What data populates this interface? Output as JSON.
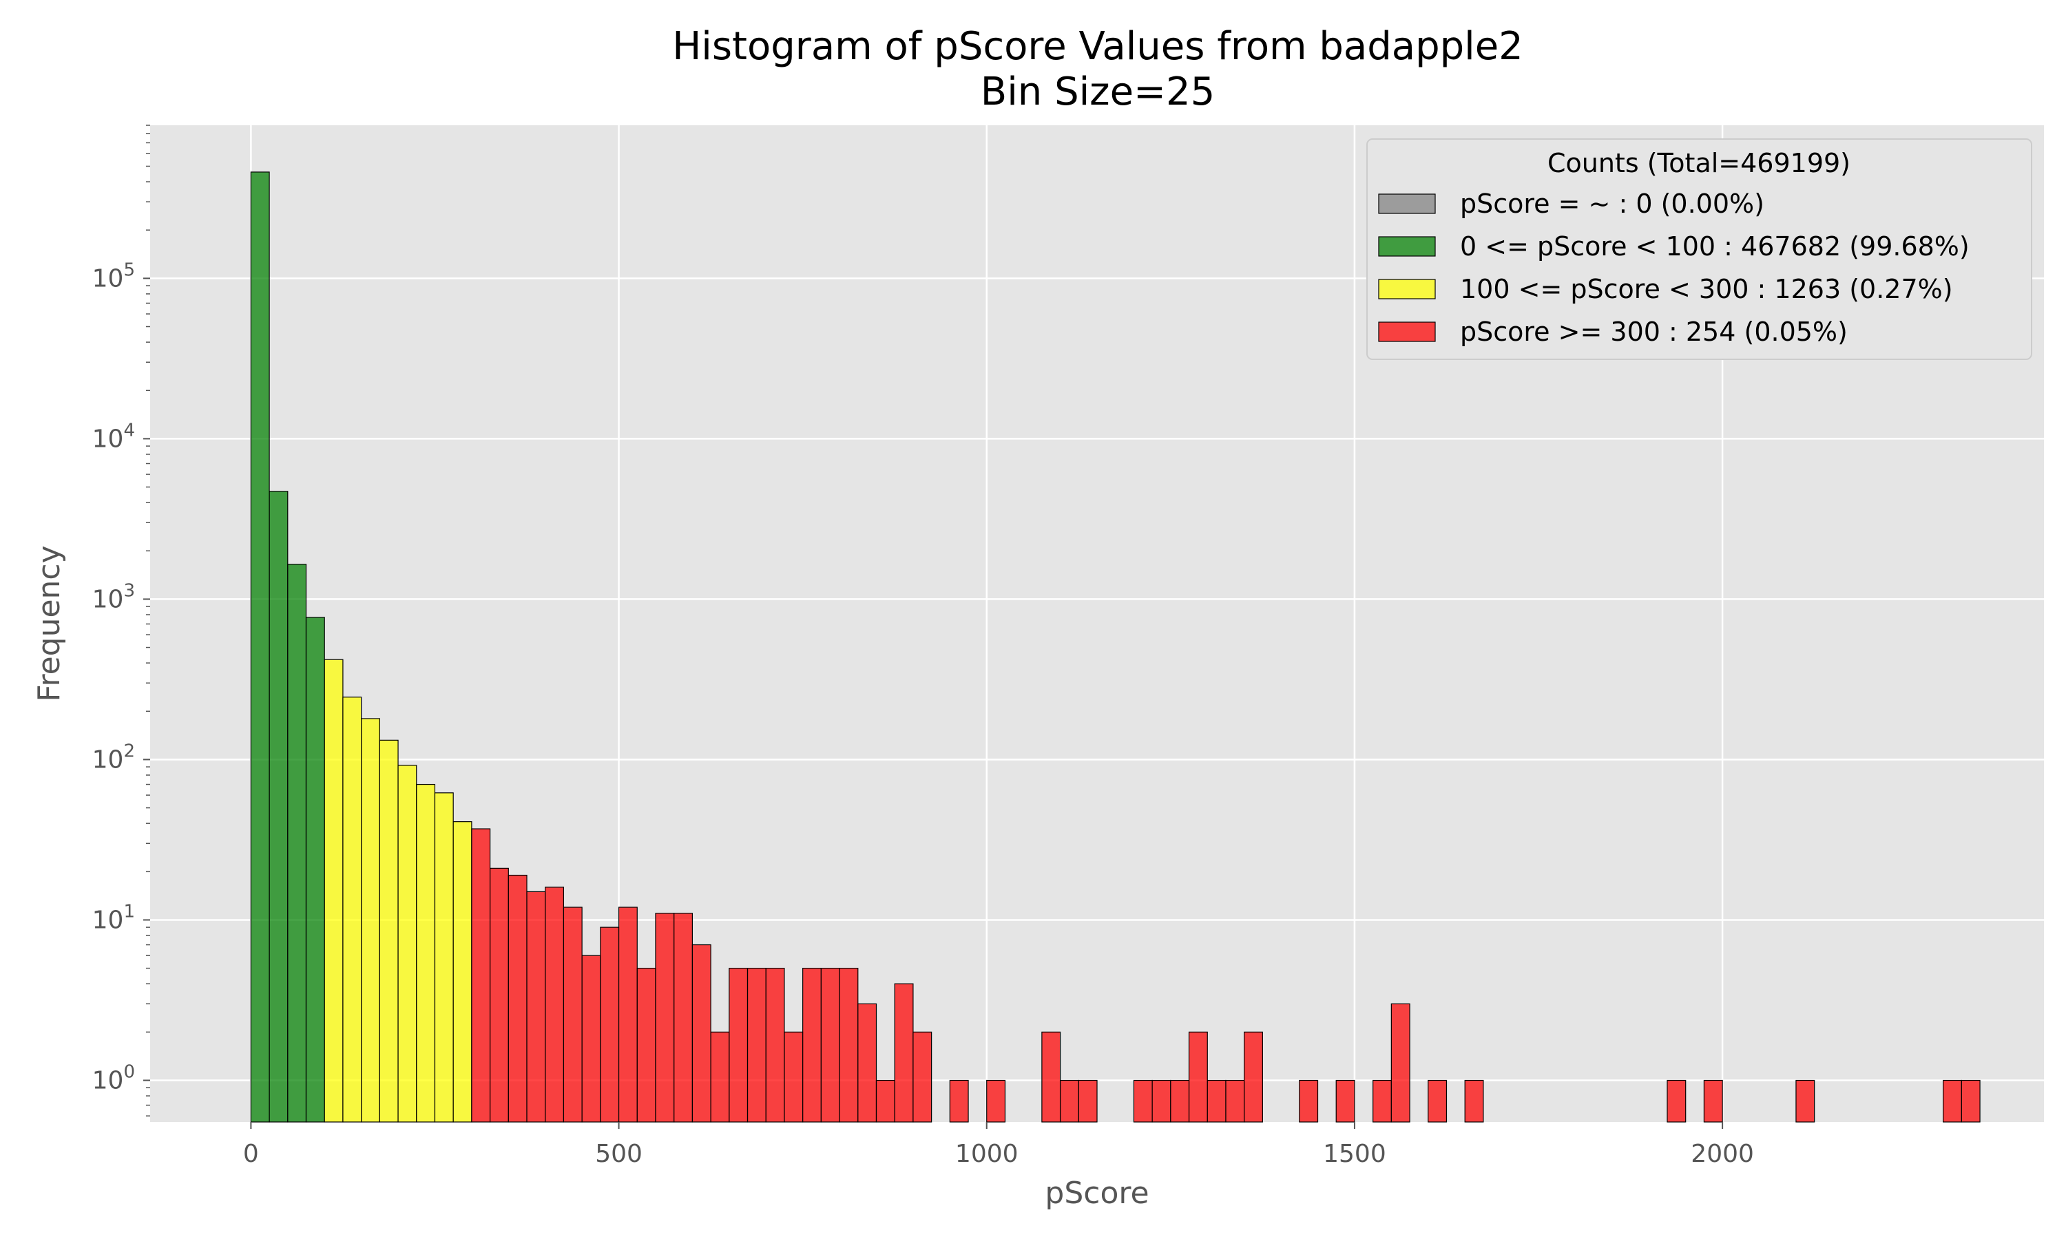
{
  "chart_data": {
    "type": "bar",
    "title": "Histogram of pScore Values from badapple2",
    "subtitle": "Bin Size=25",
    "xlabel": "pScore",
    "ylabel": "Frequency",
    "yscale": "log",
    "xlim": [
      -137,
      2437
    ],
    "ylim": [
      0.55,
      900000
    ],
    "grid": true,
    "bin_size": 25,
    "x_ticks": [
      0,
      500,
      1000,
      1500,
      2000
    ],
    "y_ticks": [
      {
        "value": 1,
        "base": "10",
        "exp": "0"
      },
      {
        "value": 10,
        "base": "10",
        "exp": "1"
      },
      {
        "value": 100,
        "base": "10",
        "exp": "2"
      },
      {
        "value": 1000,
        "base": "10",
        "exp": "3"
      },
      {
        "value": 10000,
        "base": "10",
        "exp": "4"
      },
      {
        "value": 100000,
        "base": "10",
        "exp": "5"
      }
    ],
    "legend": {
      "title": "Counts (Total=469199)",
      "placement": "top-right",
      "entries": [
        {
          "label": "pScore = ~ : 0 (0.00%)",
          "color": "#808080"
        },
        {
          "label": "0 <= pScore < 100 : 467682 (99.68%)",
          "color": "#008000"
        },
        {
          "label": "100 <= pScore < 300 : 1263 (0.27%)",
          "color": "#ffff00"
        },
        {
          "label": "pScore >= 300 : 254 (0.05%)",
          "color": "#ff0000"
        }
      ]
    },
    "series": [
      {
        "name": "0 <= pScore < 100 : 467682 (99.68%)",
        "color": "#008000",
        "bins": [
          [
            0,
            460000
          ],
          [
            25,
            4700
          ],
          [
            50,
            1650
          ],
          [
            75,
            770
          ]
        ]
      },
      {
        "name": "100 <= pScore < 300 : 1263 (0.27%)",
        "color": "#ffff00",
        "bins": [
          [
            100,
            420
          ],
          [
            125,
            245
          ],
          [
            150,
            180
          ],
          [
            175,
            132
          ],
          [
            200,
            92
          ],
          [
            225,
            70
          ],
          [
            250,
            62
          ],
          [
            275,
            41
          ]
        ]
      },
      {
        "name": "pScore >= 300 : 254 (0.05%)",
        "color": "#ff0000",
        "bins": [
          [
            300,
            37
          ],
          [
            325,
            21
          ],
          [
            350,
            19
          ],
          [
            375,
            15
          ],
          [
            400,
            16
          ],
          [
            425,
            12
          ],
          [
            450,
            6
          ],
          [
            475,
            9
          ],
          [
            500,
            12
          ],
          [
            525,
            5
          ],
          [
            550,
            11
          ],
          [
            575,
            11
          ],
          [
            600,
            7
          ],
          [
            625,
            2
          ],
          [
            650,
            5
          ],
          [
            675,
            5
          ],
          [
            700,
            5
          ],
          [
            725,
            2
          ],
          [
            750,
            5
          ],
          [
            775,
            5
          ],
          [
            800,
            5
          ],
          [
            825,
            3
          ],
          [
            850,
            1
          ],
          [
            875,
            4
          ],
          [
            900,
            2
          ],
          [
            950,
            1
          ],
          [
            1000,
            1
          ],
          [
            1075,
            2
          ],
          [
            1100,
            1
          ],
          [
            1125,
            1
          ],
          [
            1200,
            1
          ],
          [
            1225,
            1
          ],
          [
            1250,
            1
          ],
          [
            1275,
            2
          ],
          [
            1300,
            1
          ],
          [
            1325,
            1
          ],
          [
            1350,
            2
          ],
          [
            1425,
            1
          ],
          [
            1475,
            1
          ],
          [
            1525,
            1
          ],
          [
            1550,
            3
          ],
          [
            1600,
            1
          ],
          [
            1650,
            1
          ],
          [
            1925,
            1
          ],
          [
            1975,
            1
          ],
          [
            2100,
            1
          ],
          [
            2300,
            1
          ],
          [
            2325,
            1
          ]
        ]
      }
    ]
  },
  "colors": {
    "plot_background": "#e5e5e5",
    "grid": "#ffffff",
    "bar_edge": "#000000"
  }
}
